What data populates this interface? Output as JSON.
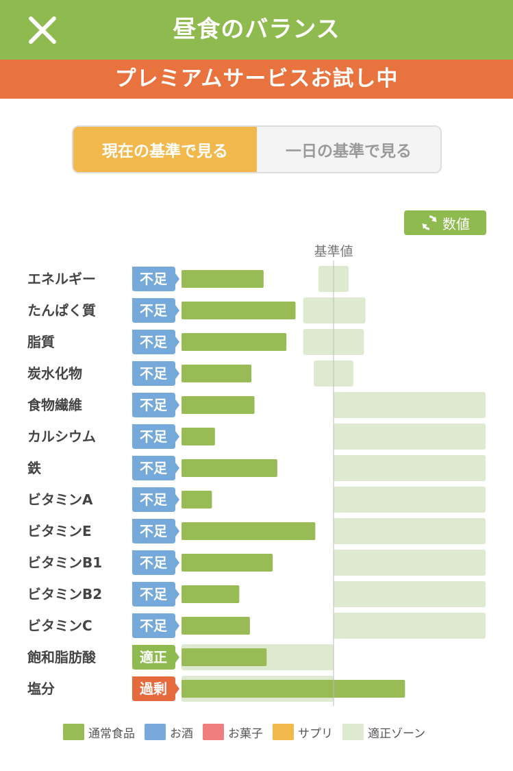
{
  "header": {
    "title": "昼食のバランス",
    "close_icon": "close-icon"
  },
  "banner": {
    "text": "プレミアムサービスお試し中"
  },
  "segment": {
    "current_label": "現在の基準で見る",
    "daily_label": "一日の基準で見る",
    "selected": "current"
  },
  "value_button": {
    "label": "数値",
    "icon": "refresh-icon"
  },
  "reference_label": "基準値",
  "colors": {
    "normal": "#99bb55",
    "alcohol": "#79a9dc",
    "sweets": "#ef7e7c",
    "supplement": "#f2b84b",
    "zone": "#deead0",
    "status_lack": "#74a9da",
    "status_ok": "#8fba4f",
    "status_over": "#e56a3d"
  },
  "legend": [
    {
      "label": "通常食品",
      "color": "#99bb55"
    },
    {
      "label": "お酒",
      "color": "#79a9dc"
    },
    {
      "label": "お菓子",
      "color": "#ef7e7c"
    },
    {
      "label": "サプリ",
      "color": "#f2b84b"
    },
    {
      "label": "適正ゾーン",
      "color": "#deead0"
    }
  ],
  "chart_data": {
    "type": "bar",
    "orientation": "horizontal",
    "unit": "% of reference value",
    "reference_value": 100,
    "categories": [
      "エネルギー",
      "たんぱく質",
      "脂質",
      "炭水化物",
      "食物繊維",
      "カルシウム",
      "鉄",
      "ビタミンA",
      "ビタミンE",
      "ビタミンB1",
      "ビタミンB2",
      "ビタミンC",
      "飽和脂肪酸",
      "塩分"
    ],
    "status": [
      "不足",
      "不足",
      "不足",
      "不足",
      "不足",
      "不足",
      "不足",
      "不足",
      "不足",
      "不足",
      "不足",
      "不足",
      "適正",
      "過剰"
    ],
    "status_type": [
      "lack",
      "lack",
      "lack",
      "lack",
      "lack",
      "lack",
      "lack",
      "lack",
      "lack",
      "lack",
      "lack",
      "lack",
      "ok",
      "over"
    ],
    "series": [
      {
        "values": [
          54,
          75,
          69,
          46,
          48,
          22,
          63,
          20,
          88,
          60,
          38,
          45,
          56,
          147
        ]
      }
    ],
    "zones": [
      [
        90,
        110
      ],
      [
        80,
        121
      ],
      [
        80,
        120
      ],
      [
        87,
        113
      ],
      [
        100,
        200
      ],
      [
        100,
        200
      ],
      [
        100,
        200
      ],
      [
        100,
        200
      ],
      [
        100,
        200
      ],
      [
        100,
        200
      ],
      [
        100,
        200
      ],
      [
        100,
        200
      ],
      [
        0,
        100
      ],
      [
        0,
        100
      ]
    ]
  }
}
